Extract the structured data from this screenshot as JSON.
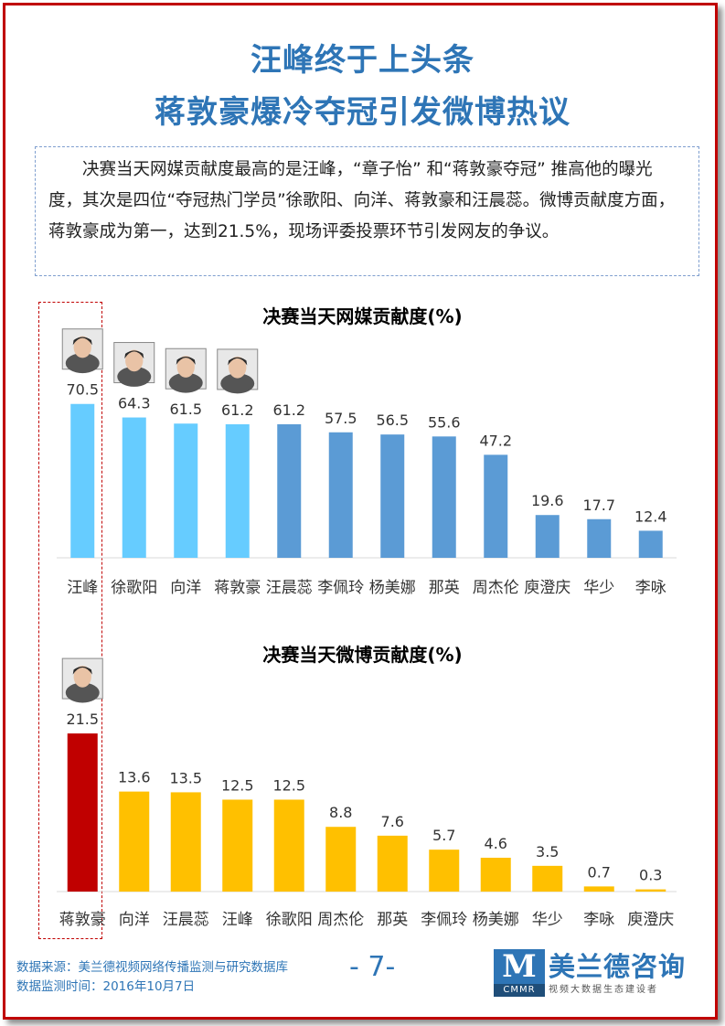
{
  "header": {
    "title_line1": "汪峰终于上头条",
    "title_line2": "蒋敦豪爆冷夺冠引发微博热议"
  },
  "intro": {
    "text": "决赛当天网媒贡献度最高的是汪峰，“章子怡” 和“蒋敦豪夺冠” 推高他的曝光度，其次是四位“夺冠热门学员”徐歌阳、向洋、蒋敦豪和汪晨蕊。微博贡献度方面，蒋敦豪成为第一，达到21.5%，现场评委投票环节引发网友的争议。"
  },
  "chart_data": [
    {
      "type": "bar",
      "title": "决赛当天网媒贡献度(%)",
      "categories": [
        "汪峰",
        "徐歌阳",
        "向洋",
        "蒋敦豪",
        "汪晨蕊",
        "李佩玲",
        "杨美娜",
        "那英",
        "周杰伦",
        "庾澄庆",
        "华少",
        "李咏"
      ],
      "values": [
        70.5,
        64.3,
        61.5,
        61.2,
        61.2,
        57.5,
        56.5,
        55.6,
        47.2,
        19.6,
        17.7,
        12.4
      ],
      "bar_colors": [
        "#66ccff",
        "#66ccff",
        "#66ccff",
        "#66ccff",
        "#5b9bd5",
        "#5b9bd5",
        "#5b9bd5",
        "#5b9bd5",
        "#5b9bd5",
        "#5b9bd5",
        "#5b9bd5",
        "#5b9bd5"
      ],
      "photo_marks": [
        0,
        1,
        2,
        3
      ],
      "ylim": [
        0,
        75
      ],
      "grid": false,
      "data_labels": true
    },
    {
      "type": "bar",
      "title": "决赛当天微博贡献度(%)",
      "categories": [
        "蒋敦豪",
        "向洋",
        "汪晨蕊",
        "汪峰",
        "徐歌阳",
        "周杰伦",
        "那英",
        "李佩玲",
        "杨美娜",
        "华少",
        "李咏",
        "庾澄庆"
      ],
      "values": [
        21.5,
        13.6,
        13.5,
        12.5,
        12.5,
        8.8,
        7.6,
        5.7,
        4.6,
        3.5,
        0.7,
        0.3
      ],
      "bar_colors": [
        "#c00000",
        "#ffc000",
        "#ffc000",
        "#ffc000",
        "#ffc000",
        "#ffc000",
        "#ffc000",
        "#ffc000",
        "#ffc000",
        "#ffc000",
        "#ffc000",
        "#ffc000"
      ],
      "photo_marks": [
        0
      ],
      "ylim": [
        0,
        23.5
      ],
      "grid": false,
      "data_labels": true
    }
  ],
  "footer": {
    "source": "数据来源：美兰德视频网络传播监测与研究数据库",
    "monitor_time": "数据监测时间：2016年10月7日",
    "page_number": "- 7-",
    "logo_mark": "M",
    "logo_abbr": "CMMR",
    "logo_name": "美兰德咨询",
    "logo_tagline": "视频大数据生态建设者"
  }
}
